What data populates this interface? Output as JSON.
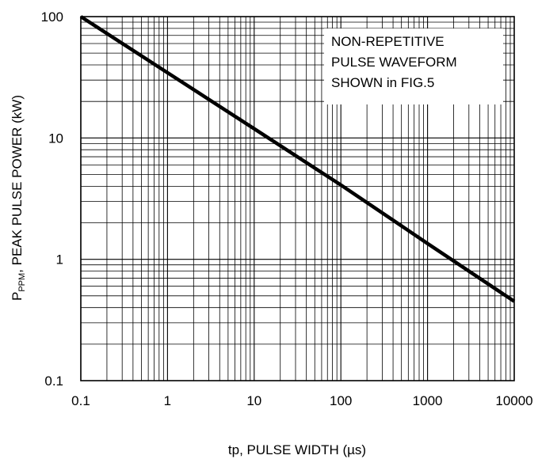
{
  "chart_data": {
    "type": "line",
    "xscale": "log",
    "yscale": "log",
    "xlim": [
      0.1,
      10000
    ],
    "ylim": [
      0.1,
      100
    ],
    "grid": true,
    "xticks": [
      "0.1",
      "1",
      "10",
      "100",
      "1000",
      "10000"
    ],
    "yticks": [
      "0.1",
      "1",
      "10",
      "100"
    ],
    "xlabel": "tp, PULSE WIDTH (µs)",
    "ylabel": {
      "main": "P",
      "subscript": "PPM",
      "rest": ", PEAK PULSE POWER (kW)"
    },
    "annotation": [
      "NON-REPETITIVE",
      "PULSE WAVEFORM",
      "SHOWN in FIG.5"
    ],
    "series": [
      {
        "x": [
          0.1,
          1,
          10,
          100,
          1000,
          10000
        ],
        "y": [
          100,
          34.5,
          11.9,
          4.1,
          1.35,
          0.45
        ],
        "color": "#000000"
      }
    ]
  }
}
